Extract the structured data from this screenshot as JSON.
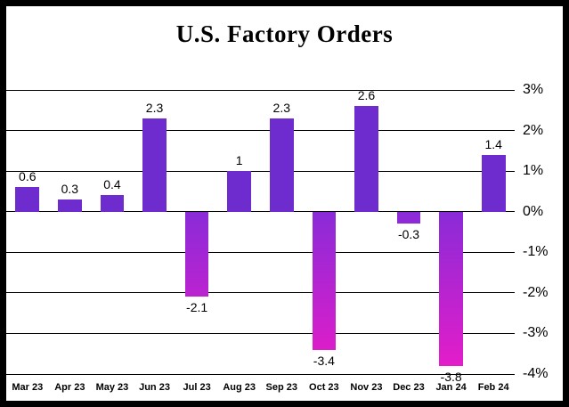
{
  "chart_data": {
    "type": "bar",
    "title": "U.S. Factory Orders",
    "categories": [
      "Mar 23",
      "Apr 23",
      "May 23",
      "Jun 23",
      "Jul 23",
      "Aug 23",
      "Sep 23",
      "Oct 23",
      "Nov 23",
      "Dec 23",
      "Jan 24",
      "Feb 24"
    ],
    "values": [
      0.6,
      0.3,
      0.4,
      2.3,
      -2.1,
      1,
      2.3,
      -3.4,
      2.6,
      -0.3,
      -3.8,
      1.4
    ],
    "data_labels": [
      "0.6",
      "0.3",
      "0.4",
      "2.3",
      "-2.1",
      "1",
      "2.3",
      "-3.4",
      "2.6",
      "-0.3",
      "-3.8",
      "1.4"
    ],
    "xlabel": "",
    "ylabel": "",
    "ylim": [
      -4,
      3
    ],
    "yticks": [
      {
        "value": 3,
        "label": "3%"
      },
      {
        "value": 2,
        "label": "2%"
      },
      {
        "value": 1,
        "label": "1%"
      },
      {
        "value": 0,
        "label": "0%"
      },
      {
        "value": -1,
        "label": "-1%"
      },
      {
        "value": -2,
        "label": "-2%"
      },
      {
        "value": -3,
        "label": "-3%"
      },
      {
        "value": -4,
        "label": "-4%"
      }
    ],
    "grid": true,
    "legend": "none",
    "colors": {
      "positive": "#6E2BCE",
      "negative_top": "#8A2BD8",
      "negative_bottom": "#E81CC8",
      "gridline": "#000000",
      "background": "#FFFFFF",
      "frame": "#000000"
    }
  }
}
